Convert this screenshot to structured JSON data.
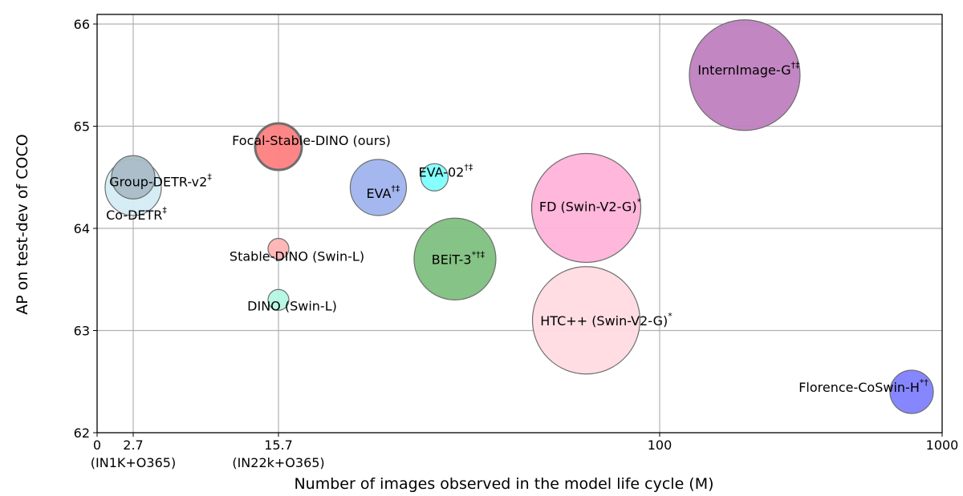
{
  "chart_data": {
    "type": "scatter",
    "subtype": "bubble",
    "title": "",
    "xlabel": "Number of images observed in the model life cycle (M)",
    "ylabel": "AP on test-dev of COCO",
    "xlim": [
      0,
      1000
    ],
    "ylim": [
      62,
      66
    ],
    "x_scale": "piecewise (linear to 15.7, log above)",
    "grid": true,
    "x_ticks": [
      {
        "value": 0,
        "label": "0",
        "sublabel": ""
      },
      {
        "value": 2.7,
        "label": "2.7",
        "sublabel": "(IN1K+O365)"
      },
      {
        "value": 15.7,
        "label": "15.7",
        "sublabel": "(IN22k+O365)"
      },
      {
        "value": 100,
        "label": "100",
        "sublabel": ""
      },
      {
        "value": 1000,
        "label": "1000",
        "sublabel": ""
      }
    ],
    "y_ticks": [
      "62",
      "63",
      "64",
      "65",
      "66"
    ],
    "points": [
      {
        "name": "Co-DETR",
        "sup": "‡",
        "x": 2.7,
        "y": 64.4,
        "size": 35,
        "color": "#d4ecf6"
      },
      {
        "name": "Group-DETR-v2",
        "sup": "‡",
        "x": 2.7,
        "y": 64.5,
        "size": 27,
        "color": "#a9bcc6"
      },
      {
        "name": "Focal-Stable-DINO (ours)",
        "sup": "",
        "x": 15.7,
        "y": 64.8,
        "size": 29,
        "color": "#ff8080"
      },
      {
        "name": "Stable-DINO (Swin-L)",
        "sup": "",
        "x": 15.7,
        "y": 63.8,
        "size": 13,
        "color": "#ffb3b3"
      },
      {
        "name": "DINO (Swin-L)",
        "sup": "",
        "x": 15.7,
        "y": 63.3,
        "size": 13,
        "color": "#b3f7e3"
      },
      {
        "name": "EVA",
        "sup": "†‡",
        "x": 25.5,
        "y": 64.4,
        "size": 35,
        "color": "#9fb3ee"
      },
      {
        "name": "EVA-02",
        "sup": "†‡",
        "x": 33.5,
        "y": 64.5,
        "size": 17,
        "color": "#80ffff"
      },
      {
        "name": "BEiT-3",
        "sup": "*†‡",
        "x": 37,
        "y": 63.7,
        "size": 51,
        "color": "#80c080"
      },
      {
        "name": "FD (Swin-V2-G)",
        "sup": "*",
        "x": 70,
        "y": 64.2,
        "size": 68,
        "color": "#ffb3d9"
      },
      {
        "name": "HTC++ (Swin-V2-G)",
        "sup": "*",
        "x": 70,
        "y": 63.1,
        "size": 67,
        "color": "#ffdbe2"
      },
      {
        "name": "InternImage-G",
        "sup": "†‡",
        "x": 200,
        "y": 65.5,
        "size": 69,
        "color": "#bf80bf"
      },
      {
        "name": "Florence-CoSwin-H",
        "sup": "*†",
        "x": 780,
        "y": 62.4,
        "size": 27,
        "color": "#8080ff"
      }
    ]
  }
}
